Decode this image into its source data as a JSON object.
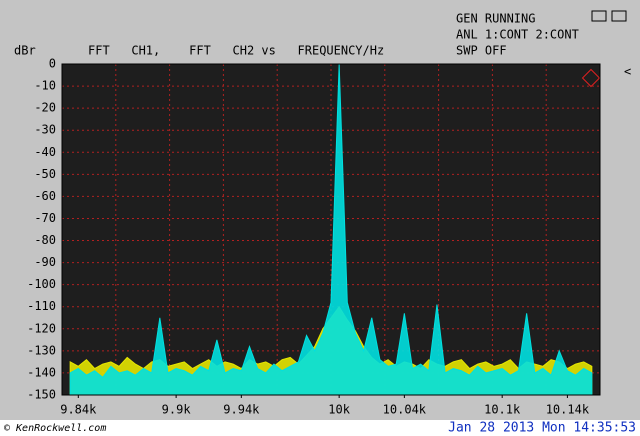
{
  "status": [
    "GEN RUNNING",
    "ANL 1:CONT 2:CONT",
    "SWP OFF"
  ],
  "watermark": "© KenRockwell.com",
  "timestamp": "Jan 28 2013 Mon 14:35:53",
  "chart_data": {
    "type": "area",
    "y_label": "dBr",
    "title": "FFT   CH1,    FFT   CH2 vs   FREQUENCY/Hz",
    "xlim": [
      9830,
      10160
    ],
    "ylim": [
      -150,
      0
    ],
    "yticks": [
      0,
      -10,
      -20,
      -30,
      -40,
      -50,
      -60,
      -70,
      -80,
      -90,
      -100,
      -110,
      -120,
      -130,
      -140,
      -150
    ],
    "xticks": [
      {
        "value": 9840,
        "label": "9.84k"
      },
      {
        "value": 9900,
        "label": "9.9k"
      },
      {
        "value": 9940,
        "label": "9.94k"
      },
      {
        "value": 10000,
        "label": "10k"
      },
      {
        "value": 10040,
        "label": "10.04k"
      },
      {
        "value": 10100,
        "label": "10.1k"
      },
      {
        "value": 10140,
        "label": "10.14k"
      }
    ],
    "grid": true,
    "x": [
      9835,
      9840,
      9845,
      9850,
      9855,
      9860,
      9865,
      9870,
      9875,
      9880,
      9885,
      9890,
      9895,
      9900,
      9905,
      9910,
      9915,
      9920,
      9925,
      9930,
      9935,
      9940,
      9945,
      9950,
      9955,
      9960,
      9965,
      9970,
      9975,
      9980,
      9985,
      9990,
      9995,
      10000,
      10005,
      10010,
      10015,
      10020,
      10025,
      10030,
      10035,
      10040,
      10045,
      10050,
      10055,
      10060,
      10065,
      10070,
      10075,
      10080,
      10085,
      10090,
      10095,
      10100,
      10105,
      10110,
      10115,
      10120,
      10125,
      10130,
      10135,
      10140,
      10145,
      10150,
      10155
    ],
    "series": [
      {
        "name": "CH1",
        "color": "#e6e600",
        "values": [
          -135,
          -137,
          -134,
          -138,
          -136,
          -135,
          -137,
          -133,
          -136,
          -138,
          -135,
          -134,
          -137,
          -136,
          -135,
          -138,
          -136,
          -134,
          -137,
          -135,
          -136,
          -138,
          -134,
          -136,
          -135,
          -137,
          -134,
          -133,
          -136,
          -132,
          -128,
          -120,
          -115,
          -110,
          -116,
          -121,
          -128,
          -133,
          -136,
          -134,
          -137,
          -135,
          -136,
          -138,
          -134,
          -136,
          -137,
          -135,
          -134,
          -138,
          -136,
          -135,
          -137,
          -136,
          -134,
          -138,
          -135,
          -136,
          -137,
          -134,
          -135,
          -138,
          -136,
          -135,
          -137
        ]
      },
      {
        "name": "CH2",
        "color": "#00e0e0",
        "values": [
          -140,
          -138,
          -141,
          -139,
          -142,
          -137,
          -140,
          -139,
          -141,
          -138,
          -140,
          -115,
          -140,
          -138,
          -139,
          -141,
          -137,
          -139,
          -125,
          -140,
          -138,
          -139,
          -128,
          -138,
          -140,
          -136,
          -139,
          -137,
          -135,
          -123,
          -130,
          -122,
          -108,
          0,
          -108,
          -122,
          -130,
          -115,
          -134,
          -137,
          -136,
          -113,
          -138,
          -136,
          -139,
          -109,
          -140,
          -138,
          -139,
          -141,
          -137,
          -140,
          -139,
          -138,
          -141,
          -139,
          -113,
          -140,
          -138,
          -141,
          -130,
          -139,
          -141,
          -138,
          -140
        ]
      }
    ]
  }
}
